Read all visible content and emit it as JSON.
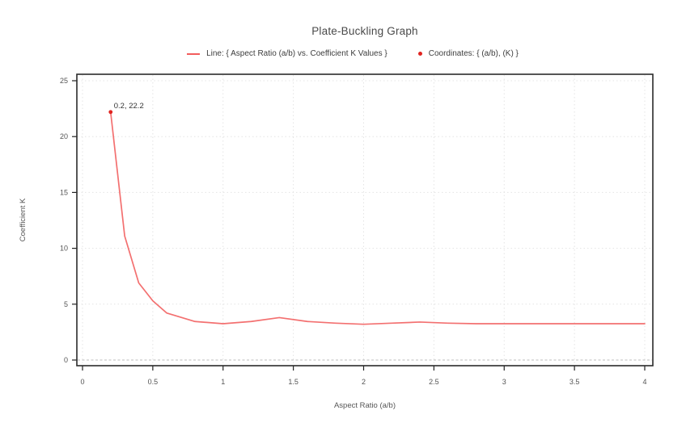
{
  "page": {
    "background_color": "#ffffff"
  },
  "chart_data": {
    "type": "line",
    "title": "Plate-Buckling Graph",
    "xlabel": "Aspect Ratio (a/b)",
    "ylabel": "Coefficient K",
    "xlim": [
      0,
      4
    ],
    "ylim": [
      0,
      25
    ],
    "xticks": [
      0,
      0.5,
      1,
      1.5,
      2,
      2.5,
      3,
      3.5,
      4
    ],
    "yticks": [
      0,
      5,
      10,
      15,
      20,
      25
    ],
    "grid": "dotted light-gray gridlines at every tick, dashed gray zero line",
    "legend_position": "top-center",
    "plot_border": true,
    "series": [
      {
        "name": "Line: { Aspect Ratio (a/b) vs. Coefficient K Values }",
        "type": "line",
        "color": "#f26060",
        "x": [
          0.2,
          0.3,
          0.4,
          0.5,
          0.6,
          0.8,
          1.0,
          1.2,
          1.4,
          1.6,
          1.8,
          2.0,
          2.2,
          2.4,
          2.6,
          2.8,
          3.0,
          3.2,
          3.4,
          3.6,
          3.8,
          4.0
        ],
        "y": [
          22.2,
          11.1,
          6.9,
          5.3,
          4.2,
          3.45,
          3.25,
          3.45,
          3.8,
          3.45,
          3.3,
          3.2,
          3.3,
          3.4,
          3.3,
          3.25,
          3.25,
          3.25,
          3.25,
          3.25,
          3.25,
          3.25
        ]
      },
      {
        "name": "Coordinates: { (a/b), (K) }",
        "type": "scatter",
        "color": "#e02420",
        "x": [
          0.2
        ],
        "y": [
          22.2
        ]
      }
    ],
    "annotations": [
      {
        "text": "0.2, 22.2",
        "x": 0.2,
        "y": 22.2
      }
    ],
    "colors": {
      "gridline": "#e4e4e4",
      "zero_line": "#bdbdbd",
      "border": "#2b2b2b",
      "tick_text": "#555555",
      "title_text": "#4a4a4a"
    }
  }
}
